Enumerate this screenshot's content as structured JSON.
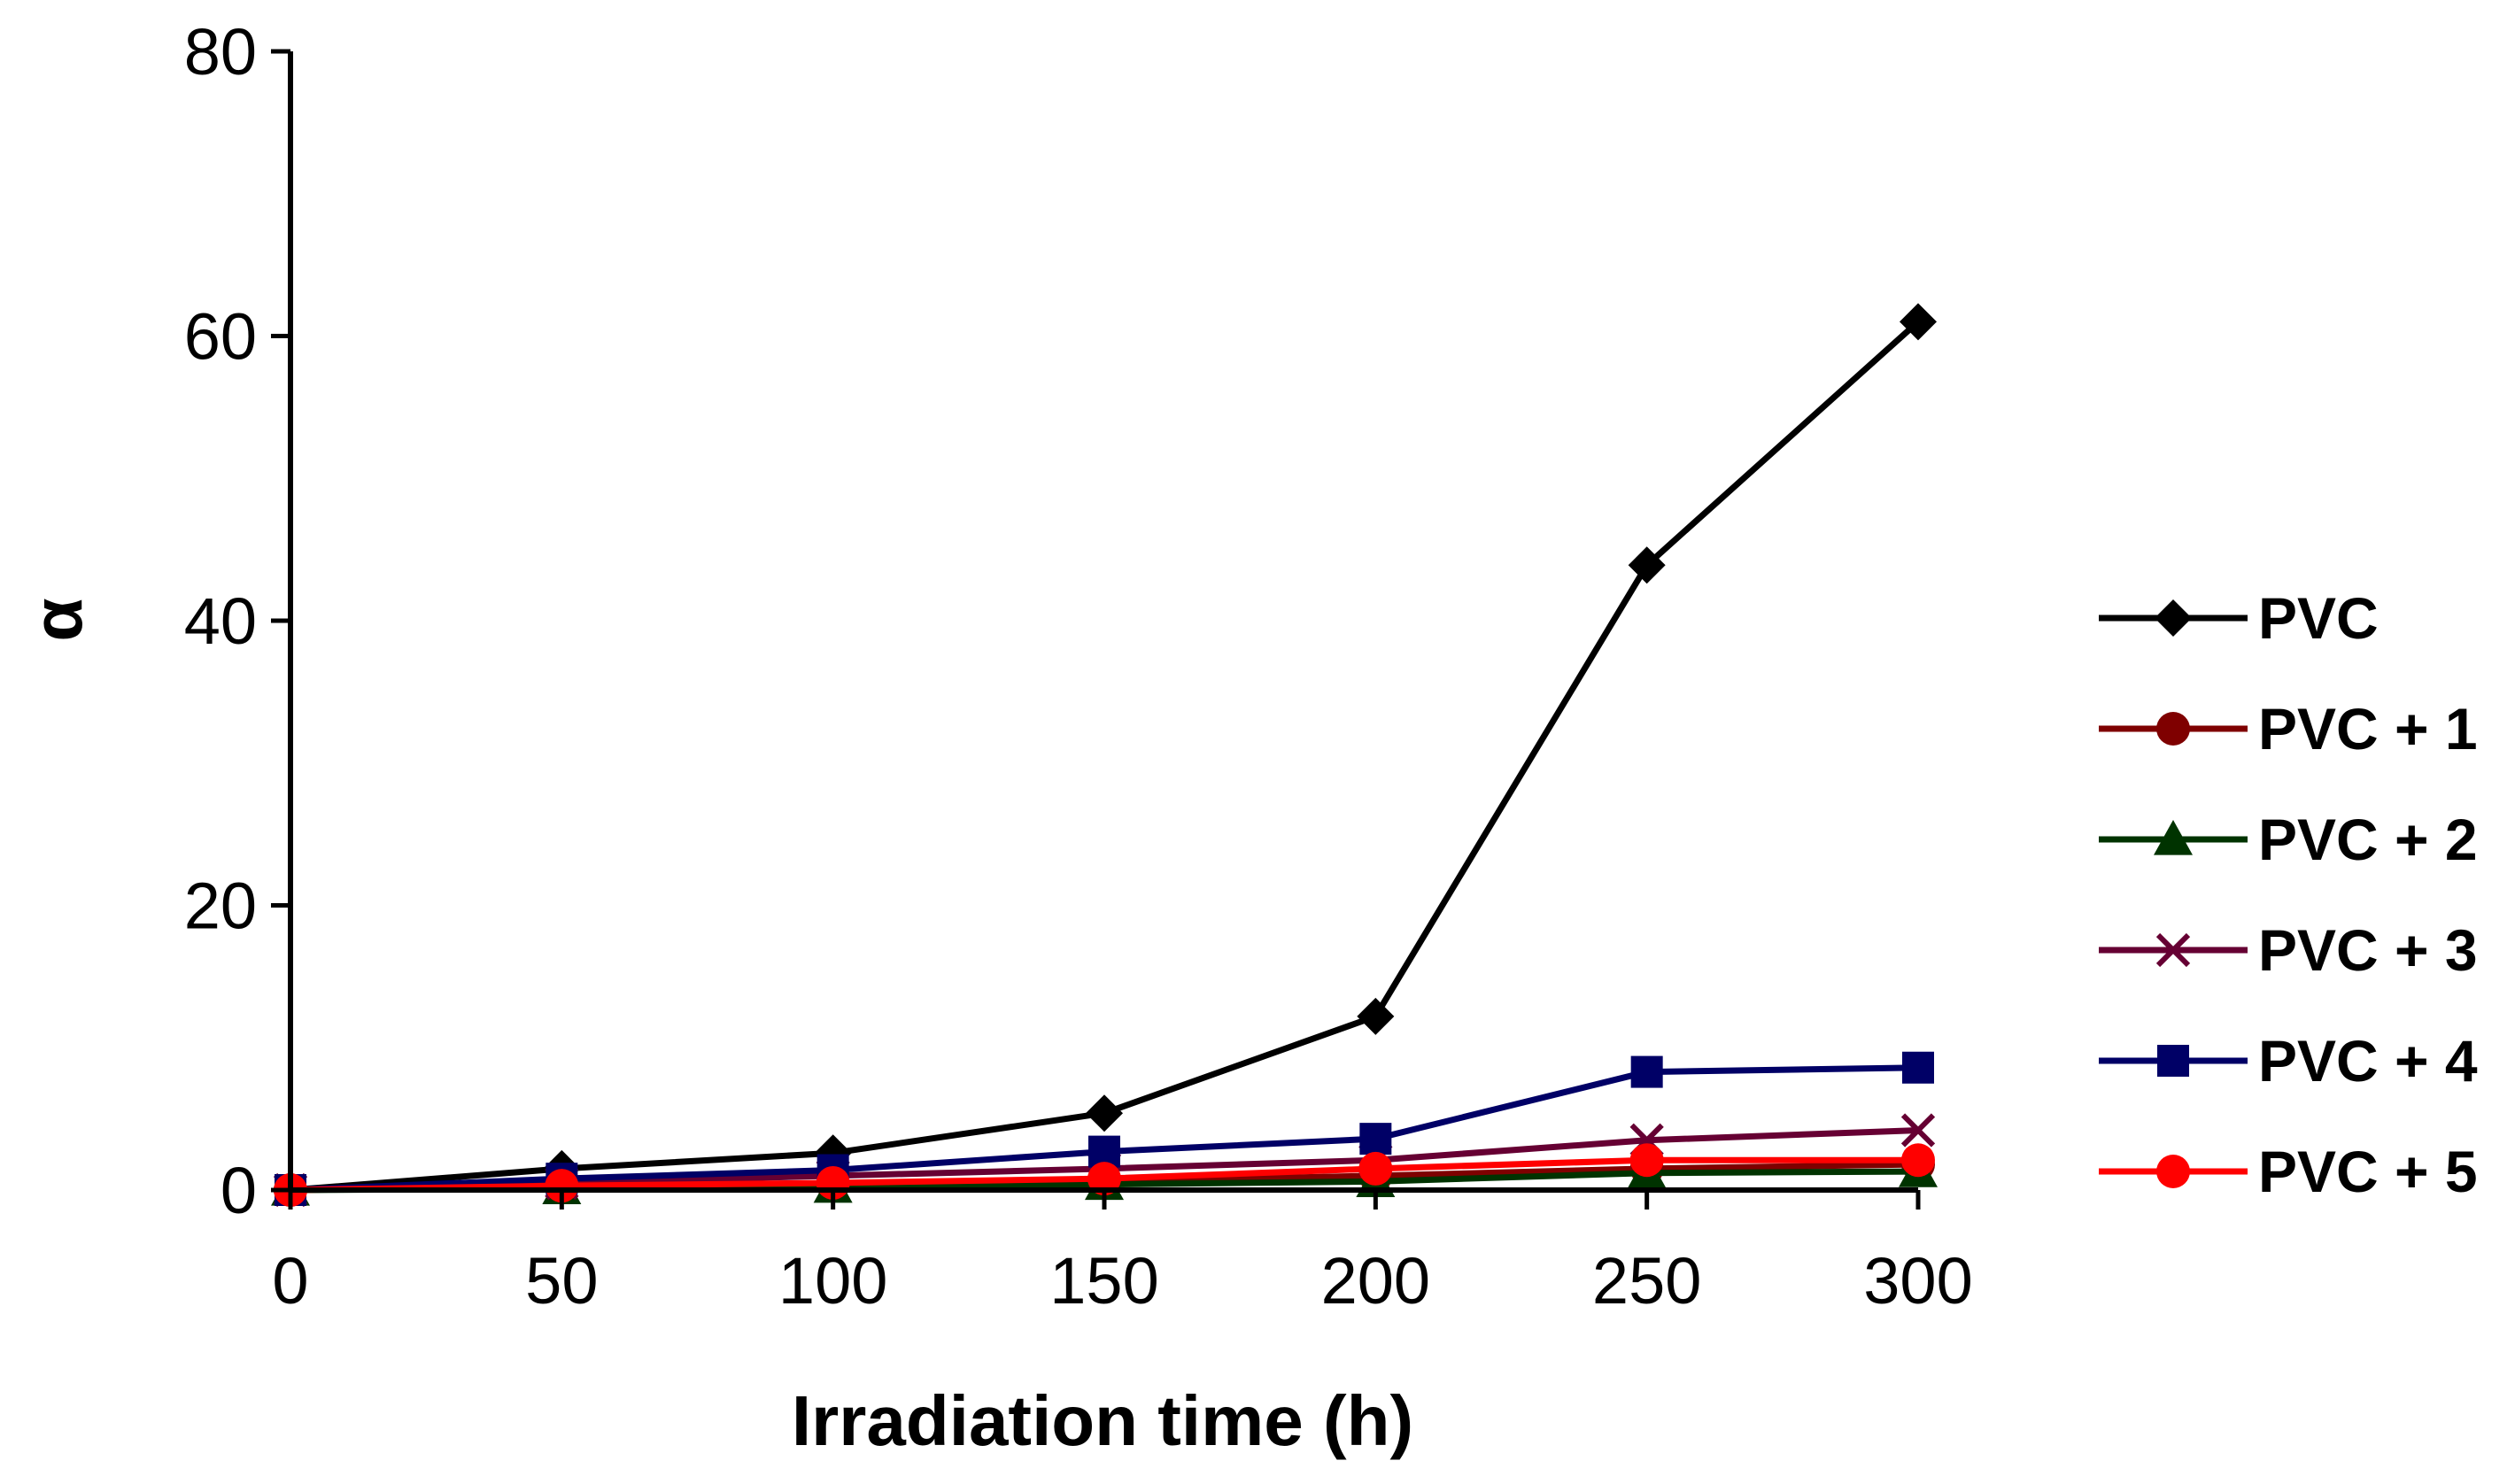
{
  "chart_data": {
    "type": "line",
    "title": "",
    "xlabel": "Irradiation time (h)",
    "ylabel": "α",
    "x": [
      0,
      50,
      100,
      150,
      200,
      250,
      300
    ],
    "x_ticks": [
      "0",
      "50",
      "100",
      "150",
      "200",
      "250",
      "300"
    ],
    "y_ticks": [
      "0",
      "20",
      "40",
      "60",
      "80"
    ],
    "xlim": [
      0,
      300
    ],
    "ylim": [
      0,
      80
    ],
    "grid": false,
    "legend_position": "right",
    "series": [
      {
        "name": "PVC",
        "marker": "diamond",
        "color": "#000000",
        "values": [
          0,
          1.5,
          2.6,
          5.4,
          12.2,
          43.9,
          61.0
        ]
      },
      {
        "name": "PVC + 1",
        "marker": "circle",
        "color": "#7f0000",
        "values": [
          0,
          0.2,
          0.4,
          0.6,
          1.0,
          1.5,
          1.8
        ]
      },
      {
        "name": "PVC + 2",
        "marker": "triangle",
        "color": "#003300",
        "values": [
          0,
          0.1,
          0.2,
          0.4,
          0.6,
          1.2,
          1.3
        ]
      },
      {
        "name": "PVC + 3",
        "marker": "x",
        "color": "#660033",
        "values": [
          0,
          0.5,
          1.0,
          1.5,
          2.1,
          3.5,
          4.2
        ]
      },
      {
        "name": "PVC + 4",
        "marker": "square",
        "color": "#000066",
        "values": [
          0,
          0.8,
          1.4,
          2.7,
          3.6,
          8.3,
          8.6
        ]
      },
      {
        "name": "PVC + 5",
        "marker": "circle",
        "color": "#ff0000",
        "values": [
          0,
          0.3,
          0.5,
          0.8,
          1.5,
          2.1,
          2.1
        ]
      }
    ]
  }
}
